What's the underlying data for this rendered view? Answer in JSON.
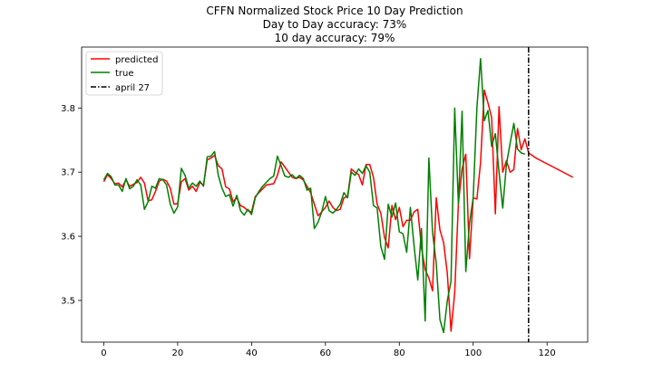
{
  "chart_data": {
    "type": "line",
    "title": [
      "CFFN Normalized Stock Price 10 Day Prediction",
      "Day to Day accuracy: 73%",
      "10 day accuracy: 79%"
    ],
    "xlabel": "",
    "ylabel": "",
    "xlim": [
      -6,
      131
    ],
    "ylim": [
      3.435,
      3.895
    ],
    "xticks": [
      0,
      20,
      40,
      60,
      80,
      100,
      120
    ],
    "yticks": [
      3.5,
      3.6,
      3.7,
      3.8
    ],
    "grid": false,
    "legend": {
      "position": "top-left",
      "entries": [
        "predicted",
        "true",
        "april 27"
      ]
    },
    "series": [
      {
        "name": "predicted",
        "color": "#ff0000",
        "x_start": 0,
        "values": [
          3.685,
          3.696,
          3.69,
          3.682,
          3.683,
          3.677,
          3.688,
          3.678,
          3.681,
          3.684,
          3.692,
          3.683,
          3.655,
          3.657,
          3.67,
          3.686,
          3.689,
          3.686,
          3.675,
          3.65,
          3.651,
          3.685,
          3.69,
          3.672,
          3.678,
          3.67,
          3.684,
          3.68,
          3.719,
          3.722,
          3.726,
          3.71,
          3.705,
          3.677,
          3.674,
          3.654,
          3.66,
          3.648,
          3.645,
          3.64,
          3.638,
          3.662,
          3.668,
          3.674,
          3.68,
          3.681,
          3.682,
          3.695,
          3.716,
          3.708,
          3.7,
          3.692,
          3.69,
          3.692,
          3.688,
          3.678,
          3.668,
          3.65,
          3.632,
          3.638,
          3.645,
          3.655,
          3.645,
          3.64,
          3.642,
          3.66,
          3.662,
          3.705,
          3.7,
          3.696,
          3.68,
          3.712,
          3.712,
          3.692,
          3.65,
          3.636,
          3.598,
          3.582,
          3.648,
          3.626,
          3.645,
          3.615,
          3.625,
          3.625,
          3.638,
          3.642,
          3.582,
          3.548,
          3.535,
          3.515,
          3.66,
          3.61,
          3.59,
          3.542,
          3.452,
          3.512,
          3.652,
          3.705,
          3.728,
          3.565,
          3.66,
          3.658,
          3.715,
          3.828,
          3.808,
          3.785,
          3.635,
          3.802,
          3.7,
          3.718,
          3.7,
          3.704,
          3.768,
          3.735,
          3.752,
          3.73,
          3.726,
          3.722,
          3.719,
          3.716,
          3.713,
          3.71,
          3.707,
          3.704,
          3.701,
          3.698,
          3.695,
          3.692
        ]
      },
      {
        "name": "true",
        "color": "#008000",
        "x_start": 0,
        "values": [
          3.688,
          3.698,
          3.693,
          3.68,
          3.68,
          3.67,
          3.69,
          3.674,
          3.678,
          3.688,
          3.68,
          3.642,
          3.654,
          3.678,
          3.675,
          3.69,
          3.688,
          3.68,
          3.65,
          3.636,
          3.646,
          3.706,
          3.695,
          3.675,
          3.683,
          3.678,
          3.686,
          3.678,
          3.724,
          3.725,
          3.732,
          3.695,
          3.675,
          3.662,
          3.665,
          3.647,
          3.664,
          3.64,
          3.633,
          3.642,
          3.634,
          3.66,
          3.67,
          3.678,
          3.684,
          3.69,
          3.694,
          3.725,
          3.71,
          3.694,
          3.692,
          3.696,
          3.69,
          3.695,
          3.69,
          3.672,
          3.675,
          3.612,
          3.622,
          3.638,
          3.662,
          3.64,
          3.636,
          3.642,
          3.65,
          3.668,
          3.66,
          3.7,
          3.695,
          3.705,
          3.698,
          3.71,
          3.7,
          3.648,
          3.644,
          3.584,
          3.564,
          3.65,
          3.63,
          3.652,
          3.607,
          3.604,
          3.575,
          3.645,
          3.585,
          3.532,
          3.612,
          3.468,
          3.722,
          3.606,
          3.558,
          3.47,
          3.45,
          3.5,
          3.53,
          3.8,
          3.65,
          3.795,
          3.545,
          3.62,
          3.66,
          3.8,
          3.877,
          3.78,
          3.796,
          3.74,
          3.76,
          3.7,
          3.644,
          3.712,
          3.745,
          3.776,
          3.736,
          3.73,
          3.728
        ]
      }
    ],
    "vline": {
      "name": "april 27",
      "x": 115,
      "color": "#000000",
      "style": "dashdot"
    }
  }
}
